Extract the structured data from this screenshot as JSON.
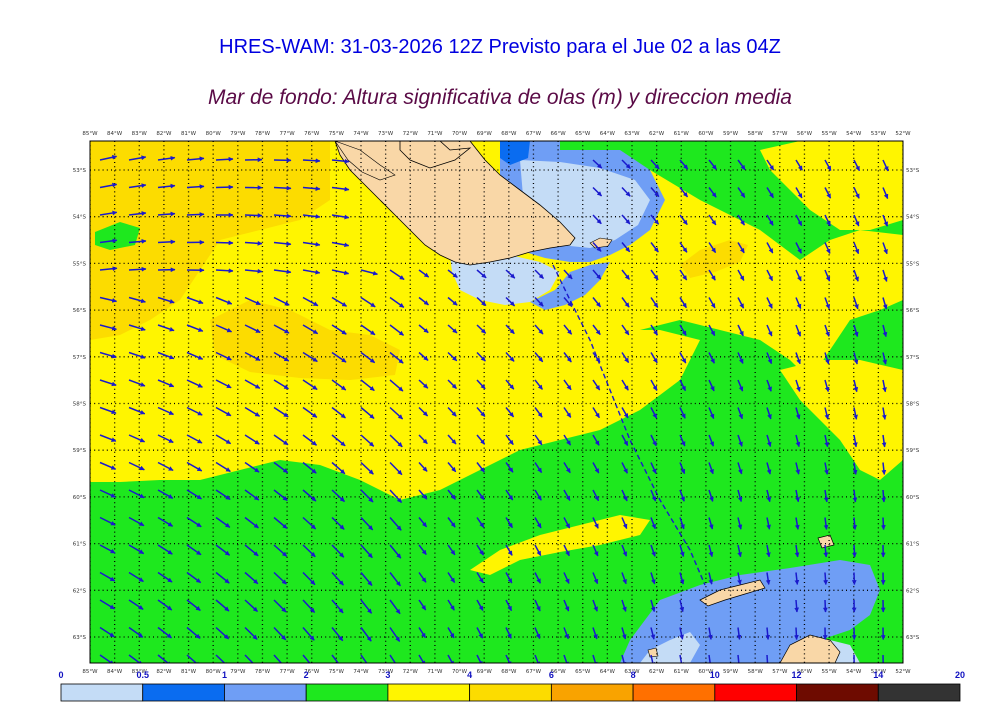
{
  "title": "HRES-WAM: 31-03-2026 12Z Previsto para el Jue 02 a las 04Z",
  "subtitle": "Mar de fondo: Altura significativa de olas (m) y direccion media",
  "colors": {
    "title": "#0000e0",
    "subtitle": "#5a0a46",
    "arrow": "#1a1acc",
    "land": "#f9d7a7",
    "grid": "#000000"
  },
  "map": {
    "lon_labels": [
      "85°W",
      "84°W",
      "83°W",
      "82°W",
      "81°W",
      "80°W",
      "79°W",
      "78°W",
      "77°W",
      "76°W",
      "75°W",
      "74°W",
      "73°W",
      "72°W",
      "71°W",
      "70°W",
      "69°W",
      "68°W",
      "67°W",
      "66°W",
      "65°W",
      "64°W",
      "63°W",
      "62°W",
      "61°W",
      "60°W",
      "59°W",
      "58°W",
      "57°W",
      "56°W",
      "55°W",
      "54°W",
      "53°W",
      "52°W"
    ],
    "lat_labels": [
      "53°S",
      "54°S",
      "55°S",
      "56°S",
      "57°S",
      "58°S",
      "59°S",
      "60°S",
      "61°S",
      "62°S",
      "63°S"
    ]
  },
  "legend": {
    "ticks": [
      "0",
      "0.5",
      "1",
      "2",
      "3",
      "4",
      "6",
      "8",
      "10",
      "12",
      "14",
      "20"
    ],
    "colors": [
      "#c4dcf6",
      "#0a6cf0",
      "#6f9ef5",
      "#1ee81e",
      "#fff500",
      "#fcdc00",
      "#f9a300",
      "#ff7000",
      "#ff0000",
      "#6e0b00",
      "#333333"
    ]
  }
}
